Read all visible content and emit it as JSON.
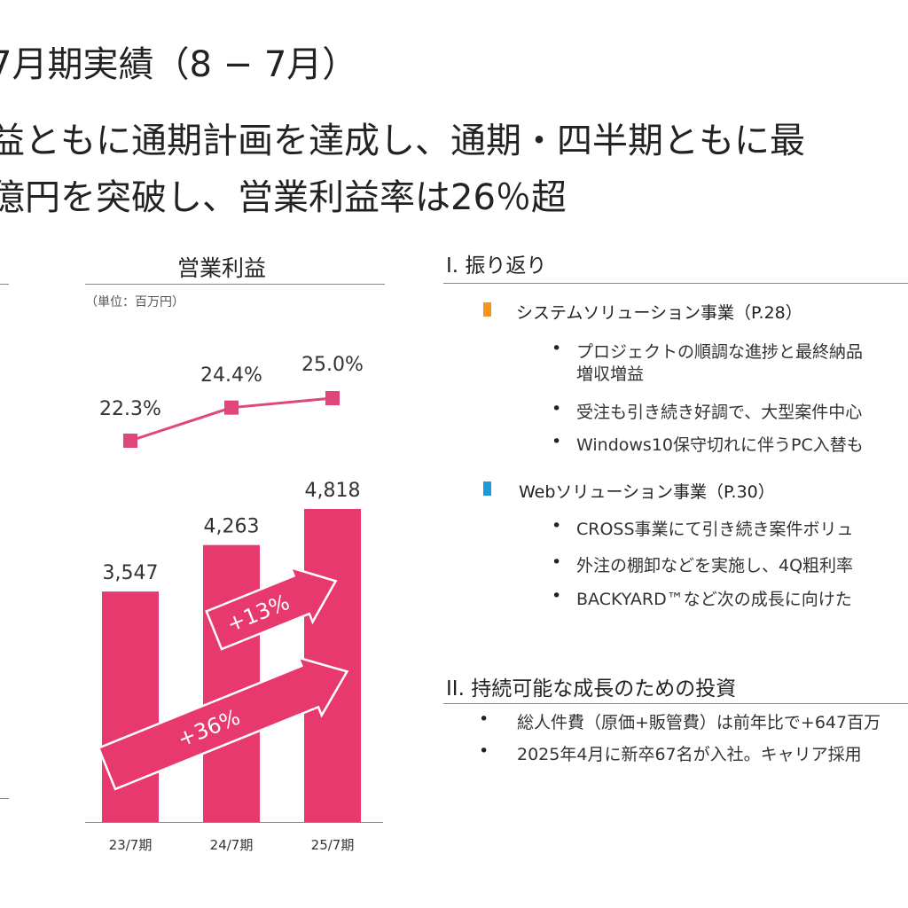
{
  "page": {
    "title": "7月期実績（8 − 7月）",
    "headline_line1": "益ともに通期計画を達成し、通期・四半期ともに最",
    "headline_line2": "億円を突破し、営業利益率は26％超"
  },
  "chart_data": {
    "type": "bar",
    "title": "営業利益",
    "unit_label": "（単位：百万円）",
    "categories": [
      "23/7期",
      "24/7期",
      "25/7期"
    ],
    "series": [
      {
        "values": [
          3547,
          4263,
          4818
        ],
        "labels": [
          "3,547",
          "4,263",
          "4,818"
        ],
        "color": "#e8396e"
      }
    ],
    "margin_series": {
      "values": [
        22.3,
        24.4,
        25.0
      ],
      "labels": [
        "22.3%",
        "24.4%",
        "25.0%"
      ],
      "color": "#e0457b"
    },
    "growth_arrows": [
      {
        "label": "+13%",
        "from": "24/7期",
        "to": "25/7期"
      },
      {
        "label": "+36%",
        "from": "23/7期",
        "to": "25/7期"
      }
    ],
    "ylim": [
      0,
      5500
    ],
    "grid": false,
    "legend": "none"
  },
  "review": {
    "section_title": "I.  振り返り",
    "categories": [
      {
        "name": "システムソリューション事業（P.28）",
        "marker_color": "#f7941d",
        "bullets": [
          "プロジェクトの順調な進捗と最終納品",
          "増収増益",
          "受注も引き続き好調で、大型案件中心",
          "Windows10保守切れに伴うPC入替も"
        ]
      },
      {
        "name": "Webソリューション事業（P.30）",
        "marker_color": "#1e9ad6",
        "bullets": [
          "CROSS事業にて引き続き案件ボリュ",
          "外注の棚卸などを実施し、4Q粗利率",
          "BACKYARD™など次の成長に向けた"
        ]
      }
    ]
  },
  "investment": {
    "section_title": "II.  持続可能な成長のための投資",
    "bullets": [
      "総人件費（原価+販管費）は前年比で+647百万",
      "2025年4月に新卒67名が入社。キャリア採用"
    ]
  },
  "bullet_symbol": "•"
}
